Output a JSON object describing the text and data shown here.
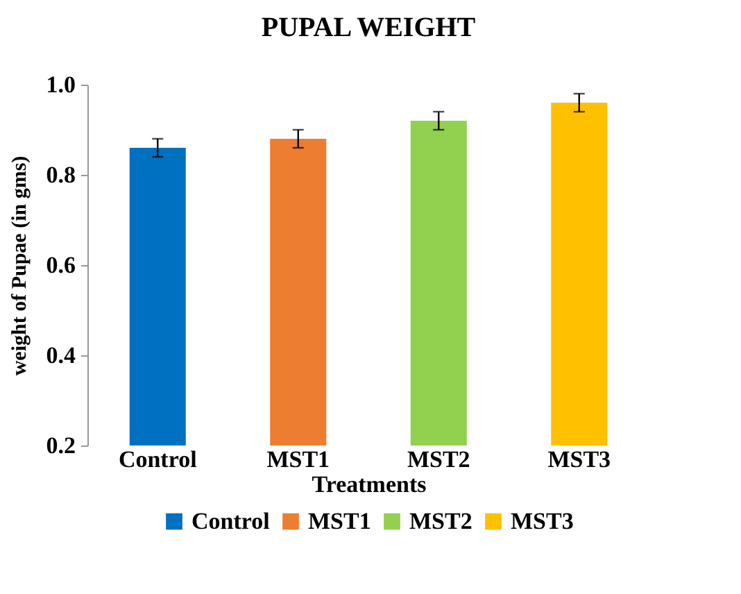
{
  "chart_data": {
    "type": "bar",
    "title": "PUPAL WEIGHT",
    "xlabel": "Treatments",
    "ylabel": "weight of Pupae (in gms)",
    "categories": [
      "Control",
      "MST1",
      "MST2",
      "MST3"
    ],
    "series": [
      {
        "name": "Control",
        "color": "#0070c0",
        "values": [
          0.86,
          null,
          null,
          null
        ],
        "errors": [
          0.02,
          null,
          null,
          null
        ]
      },
      {
        "name": "MST1",
        "color": "#ed7d31",
        "values": [
          null,
          0.88,
          null,
          null
        ],
        "errors": [
          null,
          0.02,
          null,
          null
        ]
      },
      {
        "name": "MST2",
        "color": "#92d050",
        "values": [
          null,
          null,
          0.92,
          null
        ],
        "errors": [
          null,
          null,
          0.02,
          null
        ]
      },
      {
        "name": "MST3",
        "color": "#ffc000",
        "values": [
          null,
          null,
          null,
          0.96
        ],
        "errors": [
          null,
          null,
          null,
          0.02
        ]
      }
    ],
    "ylim": [
      0.2,
      1.0
    ],
    "yticks": [
      0.2,
      0.4,
      0.6,
      0.8,
      {
        "value": 1.0,
        "label": "1.0"
      }
    ],
    "grid": false,
    "legend": "bottom"
  }
}
